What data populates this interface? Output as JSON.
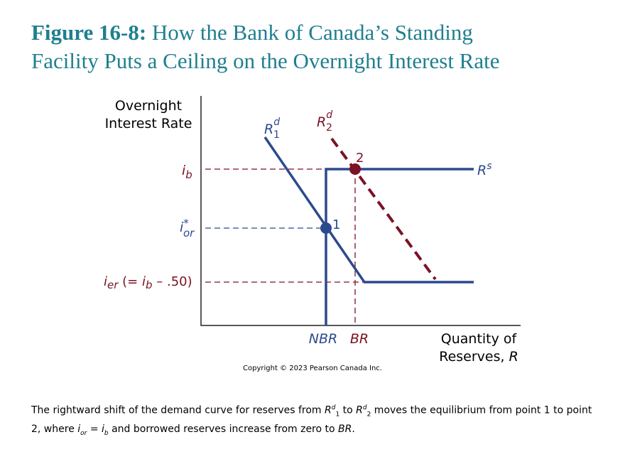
{
  "header": {
    "figure_label": "Figure 16-8:",
    "title_line1": "How the Bank of Canada’s Standing",
    "title_line2": "Facility Puts a Ceiling on the Overnight Interest Rate"
  },
  "diagram": {
    "y_axis_label": [
      "Overnight",
      "Interest Rate"
    ],
    "x_axis_label": [
      "Quantity of",
      "Reserves, ",
      "R"
    ],
    "rd1": {
      "base": "R",
      "sub": "1",
      "sup": "d"
    },
    "rd2": {
      "base": "R",
      "sub": "2",
      "sup": "d"
    },
    "rs": {
      "base": "R",
      "sup": "s"
    },
    "ib": {
      "base": "i",
      "sub": "b"
    },
    "ior": {
      "base": "i",
      "sup": "*",
      "sub": "or"
    },
    "ier": [
      "i",
      "er",
      " (= ",
      "i",
      "b",
      " – .50)"
    ],
    "nbr": "NBR",
    "br": "BR",
    "point1": "1",
    "point2": "2",
    "copyright": "Copyright © 2023 Pearson Canada Inc."
  },
  "caption": [
    "The rightward shift of the demand curve for reserves from ",
    "R",
    "d",
    "1",
    " to ",
    "R",
    "d",
    "2",
    " moves the equilibrium from point 1 to point 2, where ",
    "i",
    "or",
    " = ",
    "i",
    "b",
    " and borrowed reserves increase from zero to ",
    "BR",
    "."
  ]
}
